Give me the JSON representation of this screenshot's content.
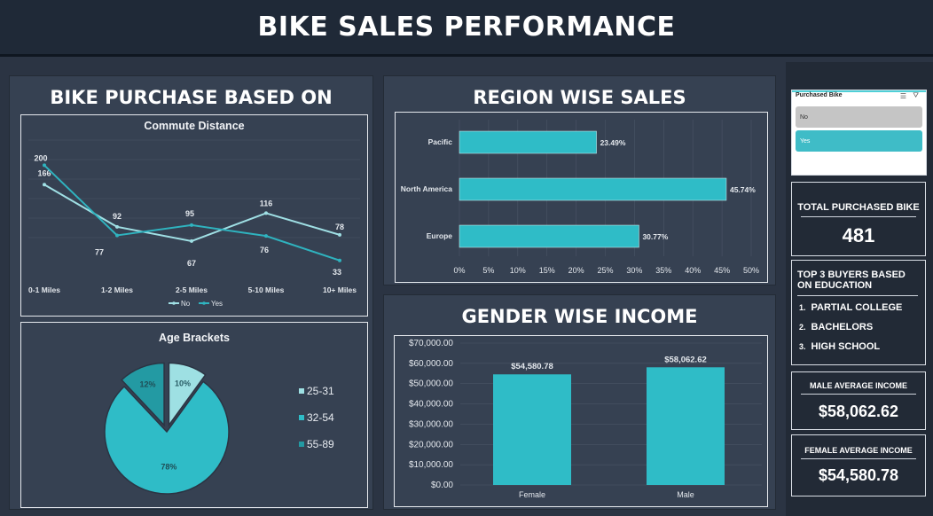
{
  "header": {
    "title": "BIKE SALES PERFORMANCE"
  },
  "colors": {
    "page_bg": "#2b3443",
    "panel_bg": "#364152",
    "kpi_bg": "#222a36",
    "teal": "#2fbcc7",
    "teal_light": "#4ad2d8",
    "teal_dark": "#239aa3",
    "line_no": "#9fdfe4",
    "line_yes": "#2fb3bf"
  },
  "purchase_panel": {
    "title": "BIKE PURCHASE BASED ON",
    "commute_chart": {
      "chart_data": {
        "type": "line",
        "title": "Commute Distance",
        "categories": [
          "0-1 Miles",
          "1-2 Miles",
          "2-5 Miles",
          "5-10 Miles",
          "10+ Miles"
        ],
        "series": [
          {
            "name": "No",
            "values": [
              166,
              92,
              67,
              116,
              78
            ]
          },
          {
            "name": "Yes",
            "values": [
              200,
              77,
              95,
              76,
              33
            ]
          }
        ],
        "legend_placement": "bottom"
      }
    },
    "age_chart": {
      "chart_data": {
        "type": "pie",
        "title": "Age Brackets",
        "labels": [
          "25-31",
          "32-54",
          "55-89"
        ],
        "values": [
          10,
          78,
          12
        ],
        "value_labels": [
          "10%",
          "78%",
          "12%"
        ],
        "legend_placement": "right"
      }
    }
  },
  "region_panel": {
    "title": "REGION WISE SALES",
    "chart_data": {
      "type": "bar",
      "orientation": "horizontal",
      "categories": [
        "Pacific",
        "North America",
        "Europe"
      ],
      "values": [
        23.49,
        45.74,
        30.77
      ],
      "value_labels": [
        "23.49%",
        "45.74%",
        "30.77%"
      ],
      "xlim": [
        0,
        50
      ],
      "xticks": [
        "0%",
        "5%",
        "10%",
        "15%",
        "20%",
        "25%",
        "30%",
        "35%",
        "40%",
        "45%",
        "50%"
      ],
      "grid": true
    }
  },
  "gender_panel": {
    "title": "GENDER WISE INCOME",
    "chart_data": {
      "type": "bar",
      "categories": [
        "Female",
        "Male"
      ],
      "values": [
        54580.78,
        58062.62
      ],
      "value_labels": [
        "$54,580.78",
        "$58,062.62"
      ],
      "ylim": [
        0,
        70000
      ],
      "yticks": [
        "$0.00",
        "$10,000.00",
        "$20,000.00",
        "$30,000.00",
        "$40,000.00",
        "$50,000.00",
        "$60,000.00",
        "$70,000.00"
      ],
      "grid": true
    }
  },
  "slicer": {
    "title": "Purchased Bike",
    "items": [
      {
        "label": "No",
        "selected": false
      },
      {
        "label": "Yes",
        "selected": true
      }
    ],
    "icons": [
      "multi-select-icon",
      "clear-filter-icon"
    ]
  },
  "kpis": {
    "total_purchased": {
      "title": "TOTAL PURCHASED BIKE",
      "value": "481"
    },
    "top_buyers": {
      "title": "TOP 3 BUYERS BASED ON EDUCATION",
      "items": [
        "PARTIAL COLLEGE",
        "BACHELORS",
        "HIGH SCHOOL"
      ],
      "markers": [
        "1.",
        "2.",
        "3."
      ]
    },
    "male_income": {
      "title": "MALE AVERAGE INCOME",
      "value": "$58,062.62"
    },
    "female_income": {
      "title": "FEMALE AVERAGE INCOME",
      "value": "$54,580.78"
    }
  }
}
